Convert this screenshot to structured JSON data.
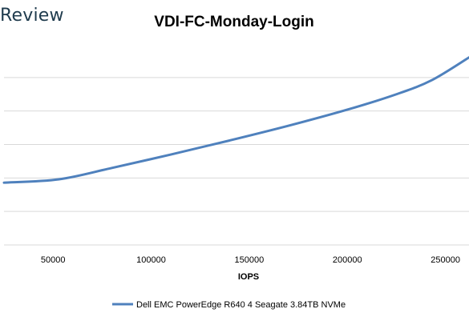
{
  "brand": {
    "text": "Review"
  },
  "chart_data": {
    "type": "line",
    "title": "VDI-FC-Monday-Login",
    "xlabel": "IOPS",
    "ylabel": "",
    "xlim": [
      25000,
      262000
    ],
    "ylim": [
      0,
      6
    ],
    "x_ticks": [
      50000,
      100000,
      150000,
      200000,
      250000
    ],
    "x_tick_labels": [
      "50000",
      "100000",
      "150000",
      "200000",
      "250000"
    ],
    "y_gridlines": [
      1,
      2,
      3,
      4,
      5
    ],
    "grid": true,
    "legend_position": "bottom",
    "series": [
      {
        "name": "Dell EMC PowerEdge R640 4 Seagate 3.84TB NVMe",
        "color": "#4f81bd",
        "x": [
          25000,
          53000,
          80000,
          110000,
          140000,
          170000,
          200000,
          225000,
          243000,
          262000
        ],
        "y": [
          1.86,
          1.96,
          2.3,
          2.7,
          3.12,
          3.56,
          4.04,
          4.5,
          4.92,
          5.6
        ]
      }
    ]
  }
}
